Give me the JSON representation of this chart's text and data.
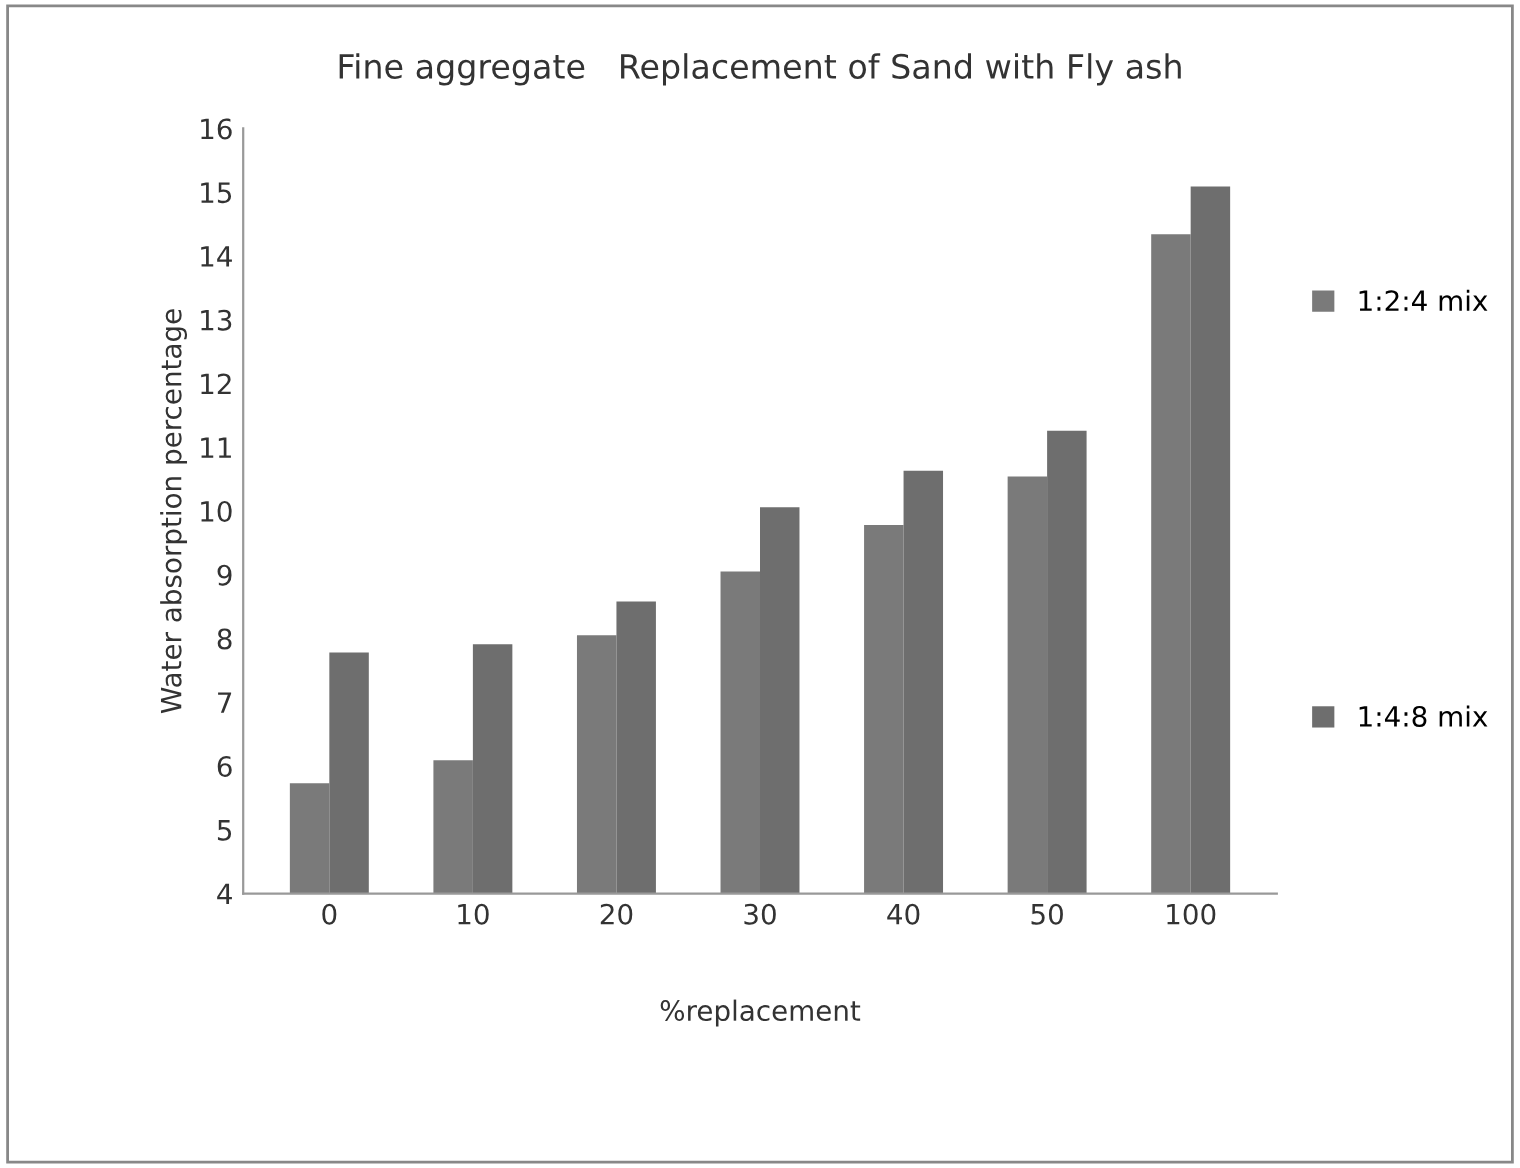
{
  "chart_data": {
    "type": "bar",
    "title": "Fine aggregate   Replacement of Sand with Fly ash",
    "xlabel": "%replacement",
    "ylabel": "Water absorption percentage",
    "categories": [
      "0",
      "10",
      "20",
      "30",
      "40",
      "50",
      "100"
    ],
    "series": [
      {
        "name": "1:2:4 mix",
        "color": "#7a7a7a",
        "values": [
          5.73,
          6.09,
          8.05,
          9.05,
          9.78,
          10.54,
          14.34
        ]
      },
      {
        "name": "1:4:8 mix",
        "color": "#6e6e6e",
        "values": [
          7.78,
          7.91,
          8.58,
          10.06,
          10.63,
          11.26,
          15.09
        ]
      }
    ],
    "ylim": [
      4,
      16
    ],
    "yticks": [
      4,
      5,
      6,
      7,
      8,
      9,
      10,
      11,
      12,
      13,
      14,
      15,
      16
    ],
    "grid": false,
    "legend": "right"
  }
}
